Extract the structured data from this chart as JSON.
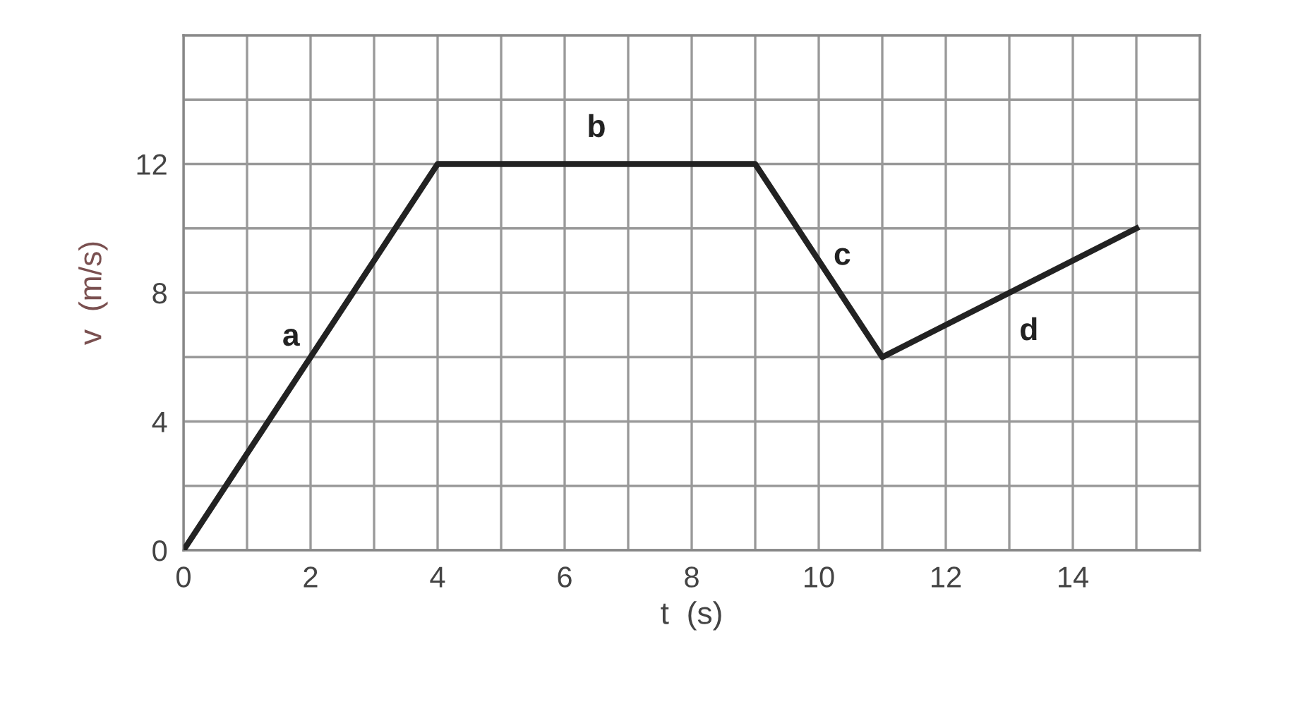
{
  "chart_data": {
    "type": "line",
    "xlabel": "t  (s)",
    "ylabel": "v  (m/s)",
    "x": [
      0,
      4,
      9,
      11,
      15
    ],
    "series": [
      {
        "color": "#222222",
        "values": [
          0,
          12,
          12,
          6,
          10
        ]
      }
    ],
    "xlim": [
      0,
      16
    ],
    "ylim": [
      0,
      16
    ],
    "xticks": [
      0,
      {
        "value": 1,
        "label": null
      },
      2,
      {
        "value": 3,
        "label": null
      },
      4,
      {
        "value": 5,
        "label": null
      },
      6,
      {
        "value": 7,
        "label": null
      },
      8,
      {
        "value": 9,
        "label": null
      },
      10,
      {
        "value": 11,
        "label": null
      },
      12,
      {
        "value": 13,
        "label": null
      },
      14,
      {
        "value": 15,
        "label": null
      },
      {
        "value": 16,
        "label": null
      }
    ],
    "yticks": [
      0,
      {
        "value": 2,
        "label": null
      },
      4,
      {
        "value": 6,
        "label": null
      },
      8,
      {
        "value": 10,
        "label": null
      },
      12,
      {
        "value": 14,
        "label": null
      },
      {
        "value": 16,
        "label": null
      }
    ],
    "grid": true,
    "marker": "none",
    "line_style": "solid",
    "annotations": [
      {
        "text": "a",
        "x": 2,
        "y": 6
      },
      {
        "text": "b",
        "x": 6.5,
        "y": 12
      },
      {
        "text": "c",
        "x": 10,
        "y": 9
      },
      {
        "text": "d",
        "x": 13,
        "y": 8
      }
    ]
  }
}
